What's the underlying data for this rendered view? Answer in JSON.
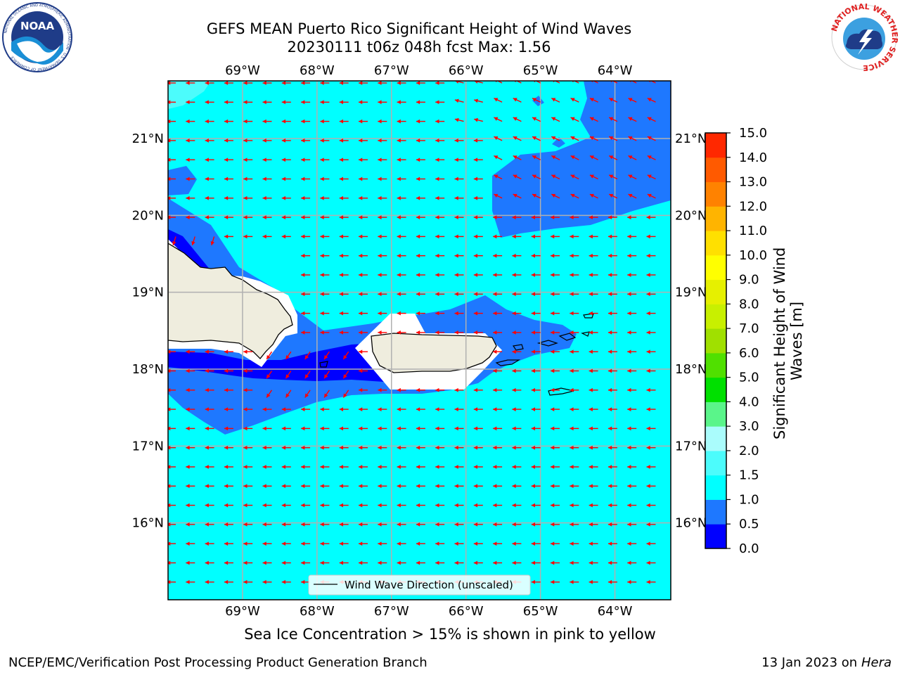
{
  "header": {
    "title": "GEFS MEAN Puerto Rico Significant Height of Wind Waves",
    "subtitle": "20230111 t06z 048h fcst   Max: 1.56"
  },
  "logos": {
    "left": {
      "name": "NOAA",
      "ring_text": "NATIONAL OCEANIC AND ATMOSPHERIC ADMINISTRATION · U.S. DEPARTMENT OF COMMERCE"
    },
    "right": {
      "name": "NATIONAL WEATHER SERVICE"
    }
  },
  "map": {
    "lon_labels": [
      "69°W",
      "68°W",
      "67°W",
      "66°W",
      "65°W",
      "64°W"
    ],
    "lat_labels": [
      "21°N",
      "20°N",
      "19°N",
      "18°N",
      "17°N",
      "16°N"
    ],
    "lon_values": [
      -69,
      -68,
      -67,
      -66,
      -65,
      -64
    ],
    "lat_values": [
      21,
      20,
      19,
      18,
      17,
      16
    ],
    "extent": {
      "lon_min": -70.0,
      "lon_max": -63.25,
      "lat_min": 15.0,
      "lat_max": 21.75
    },
    "legend_label": "Wind Wave Direction (unscaled)",
    "arrow_color": "#ff0000",
    "land_color": "#efedde",
    "grid_color": "#b0b0b0"
  },
  "colorbar": {
    "label": "Significant Height of Wind Waves [m]",
    "ticks": [
      "0.0",
      "0.5",
      "1.0",
      "1.5",
      "2.0",
      "3.0",
      "4.0",
      "5.0",
      "6.0",
      "7.0",
      "8.0",
      "9.0",
      "10.0",
      "11.0",
      "12.0",
      "13.0",
      "14.0",
      "15.0"
    ],
    "colors": [
      "#0000ff",
      "#1e78ff",
      "#00ffff",
      "#4cfcfc",
      "#aafcfc",
      "#5af58a",
      "#00e000",
      "#50e000",
      "#a0e000",
      "#c8f000",
      "#e6f000",
      "#ffff00",
      "#ffe000",
      "#ffb400",
      "#ff8200",
      "#ff5a00",
      "#ff2800",
      "#ff0000"
    ]
  },
  "note": "Sea Ice Concentration > 15% is shown in pink to yellow",
  "footer": {
    "left": "NCEP/EMC/Verification Post Processing Product Generation Branch",
    "right_prefix": "13 Jan 2023 on ",
    "right_italic": "Hera"
  }
}
